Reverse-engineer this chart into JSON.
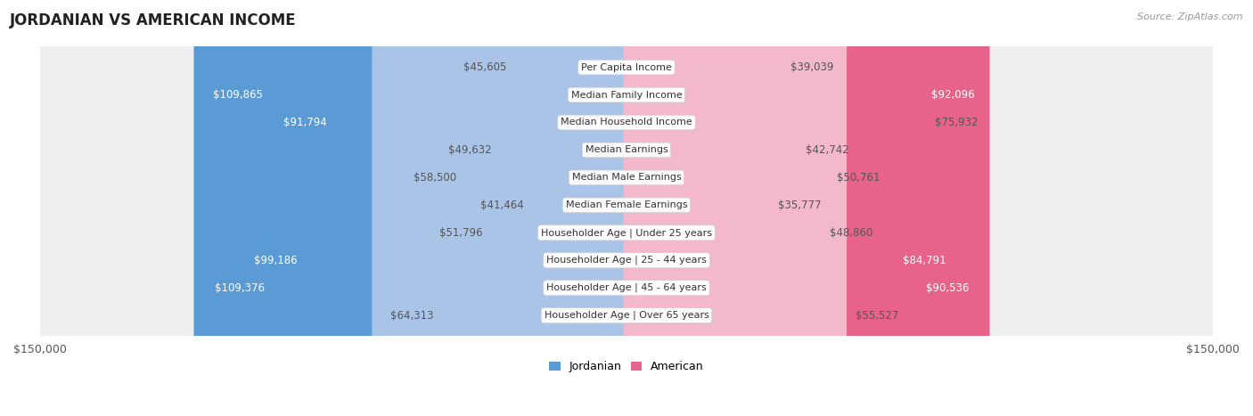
{
  "title": "JORDANIAN VS AMERICAN INCOME",
  "source": "Source: ZipAtlas.com",
  "max_value": 150000,
  "categories": [
    "Per Capita Income",
    "Median Family Income",
    "Median Household Income",
    "Median Earnings",
    "Median Male Earnings",
    "Median Female Earnings",
    "Householder Age | Under 25 years",
    "Householder Age | 25 - 44 years",
    "Householder Age | 45 - 64 years",
    "Householder Age | Over 65 years"
  ],
  "jordanian_values": [
    45605,
    109865,
    91794,
    49632,
    58500,
    41464,
    51796,
    99186,
    109376,
    64313
  ],
  "american_values": [
    39039,
    92096,
    75932,
    42742,
    50761,
    35777,
    48860,
    84791,
    90536,
    55527
  ],
  "jordanian_labels": [
    "$45,605",
    "$109,865",
    "$91,794",
    "$49,632",
    "$58,500",
    "$41,464",
    "$51,796",
    "$99,186",
    "$109,376",
    "$64,313"
  ],
  "american_labels": [
    "$39,039",
    "$92,096",
    "$75,932",
    "$42,742",
    "$50,761",
    "$35,777",
    "$48,860",
    "$84,791",
    "$90,536",
    "$55,527"
  ],
  "jordanian_dark_indices": [
    1,
    2,
    7,
    8
  ],
  "american_dark_indices": [
    1,
    7,
    8
  ],
  "color_jordanian_light": "#aac4e8",
  "color_jordanian_dark": "#5b9bd5",
  "color_american_light": "#f4b8cc",
  "color_american_dark": "#e8638a",
  "color_row_bg": "#efefef",
  "color_row_border": "#d8d8d8",
  "background_color": "#ffffff",
  "label_fontsize": 8.5,
  "category_fontsize": 8.0,
  "title_fontsize": 12,
  "legend_fontsize": 9,
  "source_fontsize": 8,
  "axis_label_fontsize": 9
}
